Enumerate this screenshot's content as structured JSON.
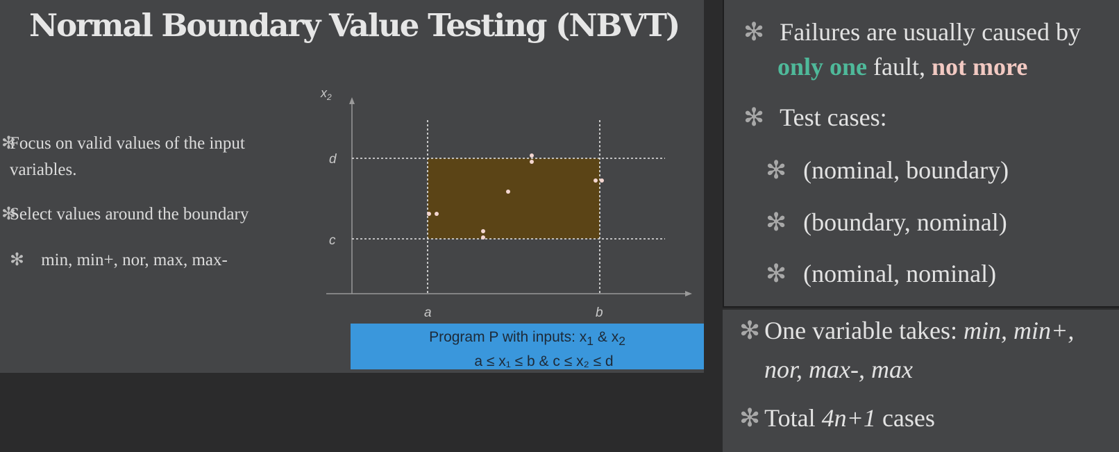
{
  "title": "Normal Boundary Value Testing (NBVT)",
  "bullet_glyph": "✻",
  "left_bullets": {
    "b1": "Focus on valid values of the input variables.",
    "b2": "Select values around the boundary",
    "b3": "min, min+, nor, max, max-"
  },
  "diagram": {
    "y_axis_label": "x",
    "y_axis_sub": "2",
    "labels": {
      "a": "a",
      "b": "b",
      "c": "c",
      "d": "d"
    },
    "region_color": "#5b4416",
    "point_color": "#f3d6d0",
    "caption_line1": "Program P with inputs: x",
    "caption_sub1": "1",
    "caption_and": " & x",
    "caption_sub2": "2",
    "caption_line2": "a ≤ x₁ ≤ b  &  c ≤ x₂ ≤ d"
  },
  "right_panel": {
    "failures_line1": "Failures are usually caused by",
    "only_one": "only one",
    "fault": " fault,",
    "not_more": "not more",
    "test_cases": "Test cases:",
    "case1": "(nominal, boundary)",
    "case2": "(boundary, nominal)",
    "case3": "(nominal, nominal)",
    "one_variable_prefix": "One variable takes:",
    "one_variable_values1": "min, min+,",
    "one_variable_values2": "nor, max-, max",
    "total_prefix": "Total",
    "total_formula": "4n+1",
    "total_suffix": "cases"
  },
  "colors": {
    "highlight_green": "#4fb99a",
    "highlight_pink": "#f2c9c2",
    "caption_bg": "#3a97dc"
  }
}
